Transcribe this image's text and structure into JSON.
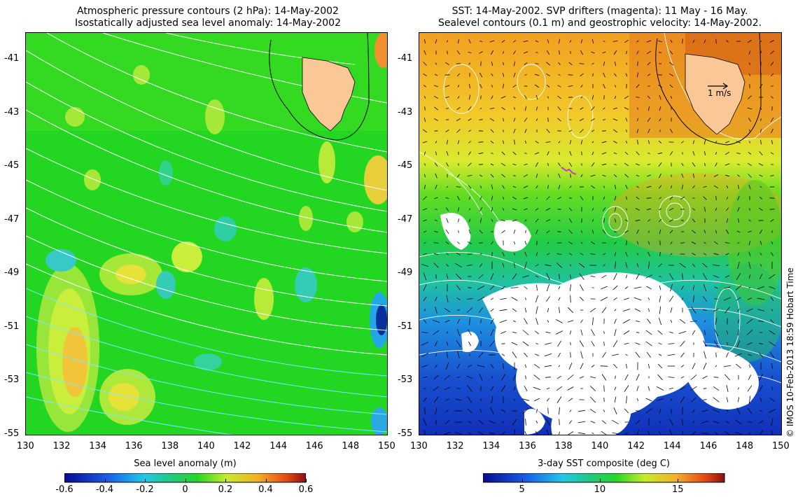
{
  "left_panel": {
    "title_line1": "Atmospheric pressure contours (2 hPa): 14-May-2002",
    "title_line2": "Isostatically adjusted sea level anomaly: 14-May-2002",
    "colorbar_title": "Sea level anomaly (m)",
    "colorbar_ticks": [
      "-0.6",
      "-0.4",
      "-0.2",
      "0",
      "0.2",
      "0.4",
      "0.6"
    ],
    "colorbar_range": [
      -0.6,
      0.6
    ],
    "colors": {
      "background": "#22d622",
      "land": "#f9c896"
    }
  },
  "right_panel": {
    "title_line1": "SST: 14-May-2002. SVP drifters (magenta): 11 May - 16 May.",
    "title_line2": "Sealevel contours (0.1 m) and geostrophic velocity: 14-May-2002.",
    "colorbar_title": "3-day SST composite (deg C)",
    "colorbar_ticks": [
      "5",
      "10",
      "15"
    ],
    "colorbar_range": [
      2.5,
      18.0
    ],
    "velocity_legend": "1 m/s",
    "colors": {
      "land": "#f9c896",
      "drifter": "#cc33cc"
    }
  },
  "axes": {
    "x_ticks": [
      "130",
      "132",
      "134",
      "136",
      "138",
      "140",
      "142",
      "144",
      "146",
      "148",
      "150"
    ],
    "y_ticks": [
      "-41",
      "-43",
      "-45",
      "-47",
      "-49",
      "-51",
      "-53",
      "-55"
    ],
    "lon_range": [
      130,
      150
    ],
    "lat_range": [
      -55,
      -40
    ]
  },
  "credit": "© IMOS 10-Feb-2013 18:59 Hobart Time"
}
